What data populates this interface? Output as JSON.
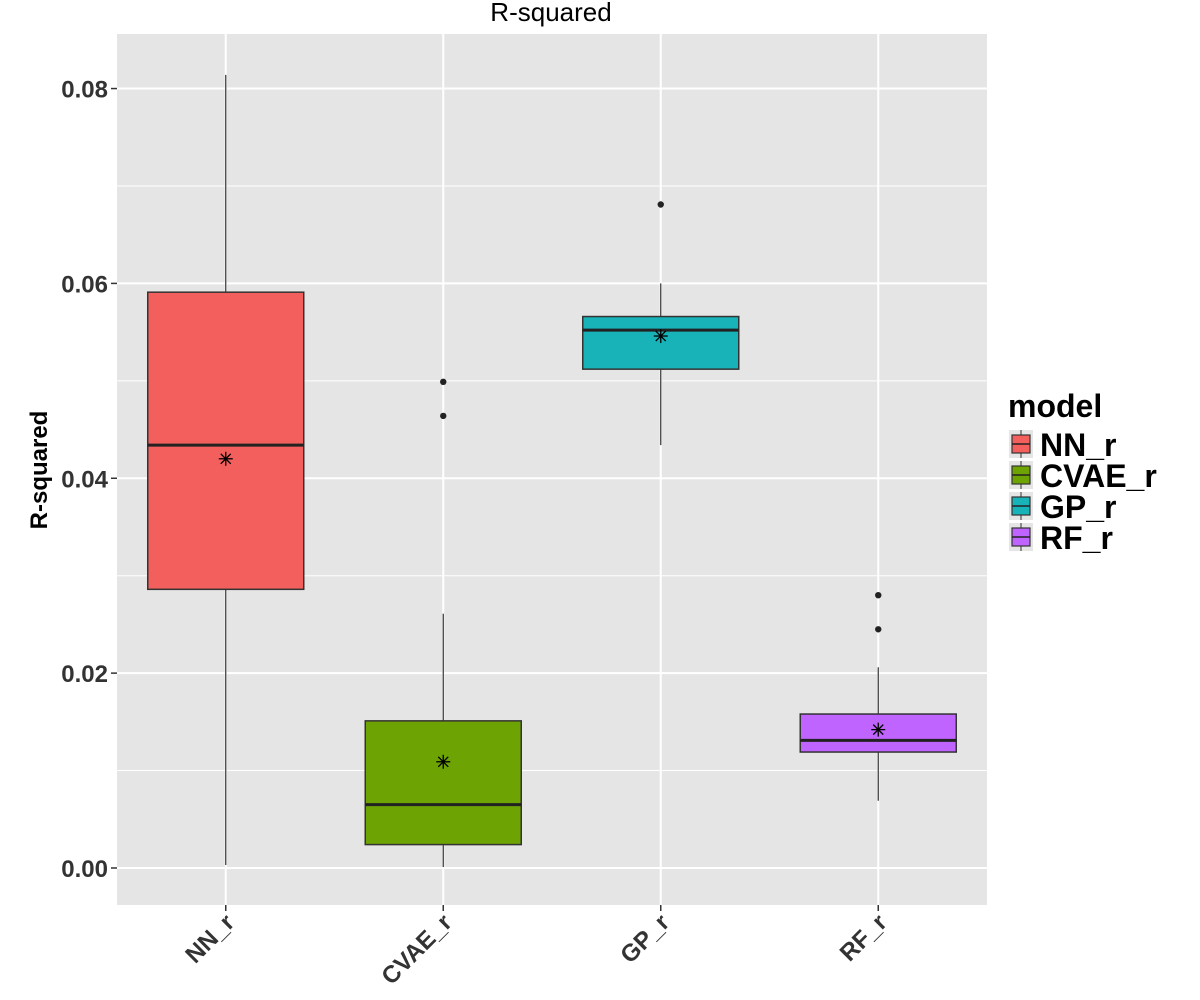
{
  "chart_data": {
    "type": "boxplot",
    "title": "R-squared",
    "xlabel": "",
    "ylabel": "R-squared",
    "ylim": [
      -0.0038,
      0.0856
    ],
    "yticks": [
      0.0,
      0.02,
      0.04,
      0.06,
      0.08
    ],
    "ytick_labels": [
      "0.00",
      "0.02",
      "0.04",
      "0.06",
      "0.08"
    ],
    "minor_yticks": [
      0.01,
      0.03,
      0.05,
      0.07
    ],
    "grid": true,
    "categories": [
      "NN_r",
      "CVAE_r",
      "GP_r",
      "RF_r"
    ],
    "series": [
      {
        "name": "NN_r",
        "color": "#F25F5C",
        "whisker_low": 0.0003,
        "q1": 0.0286,
        "median": 0.0434,
        "q3": 0.0591,
        "whisker_high": 0.0814,
        "mean": 0.042,
        "outliers": []
      },
      {
        "name": "CVAE_r",
        "color": "#6EA304",
        "whisker_low": 0.0001,
        "q1": 0.0024,
        "median": 0.0065,
        "q3": 0.0151,
        "whisker_high": 0.0261,
        "mean": 0.0109,
        "outliers": [
          0.0464,
          0.0499
        ]
      },
      {
        "name": "GP_r",
        "color": "#17B3B8",
        "whisker_low": 0.0434,
        "q1": 0.0512,
        "median": 0.0552,
        "q3": 0.0566,
        "whisker_high": 0.06,
        "mean": 0.0546,
        "outliers": [
          0.0681
        ]
      },
      {
        "name": "RF_r",
        "color": "#C064FF",
        "whisker_low": 0.0069,
        "q1": 0.0119,
        "median": 0.0131,
        "q3": 0.0158,
        "whisker_high": 0.0206,
        "mean": 0.0142,
        "outliers": [
          0.0245,
          0.028
        ]
      }
    ],
    "legend": {
      "title": "model",
      "position": "right",
      "entries": [
        "NN_r",
        "CVAE_r",
        "GP_r",
        "RF_r"
      ]
    }
  }
}
